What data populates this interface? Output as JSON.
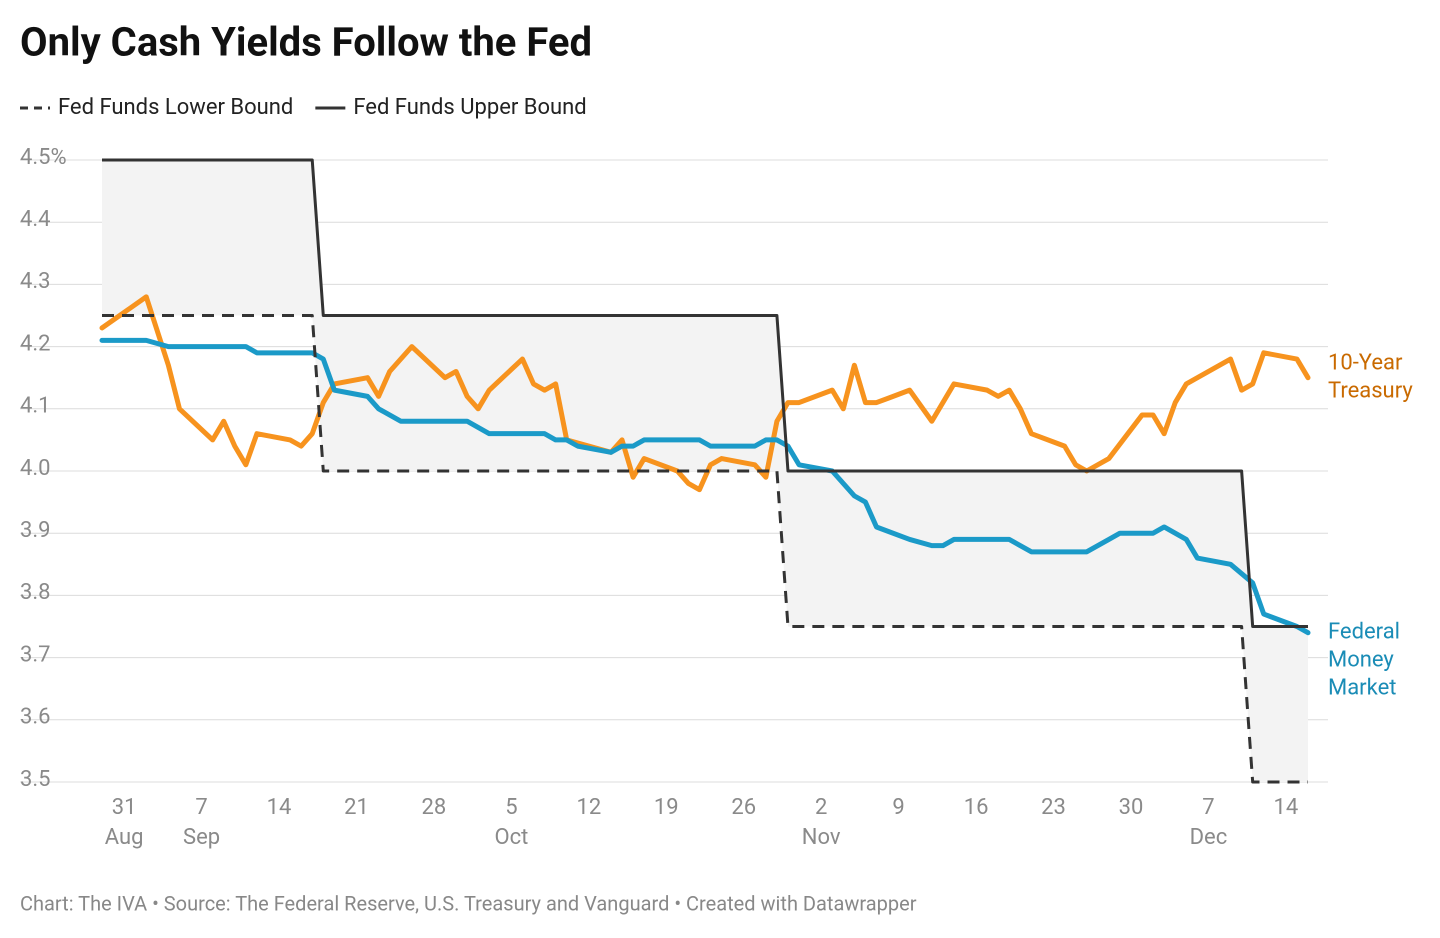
{
  "chart_data": {
    "type": "line",
    "title": "Only Cash Yields Follow the Fed",
    "footer": "Chart: The IVA • Source: The Federal Reserve, U.S. Treasury and Vanguard • Created with Datawrapper",
    "xlim": [
      "Aug 29",
      "Dec 16"
    ],
    "xticks": [
      {
        "value": "Aug 31",
        "label": "31"
      },
      {
        "value": "Sep 7",
        "label": "7"
      },
      {
        "value": "Sep 14",
        "label": "14"
      },
      {
        "value": "Sep 21",
        "label": "21"
      },
      {
        "value": "Sep 28",
        "label": "28"
      },
      {
        "value": "Oct 5",
        "label": "5"
      },
      {
        "value": "Oct 12",
        "label": "12"
      },
      {
        "value": "Oct 19",
        "label": "19"
      },
      {
        "value": "Oct 26",
        "label": "26"
      },
      {
        "value": "Nov 2",
        "label": "2"
      },
      {
        "value": "Nov 9",
        "label": "9"
      },
      {
        "value": "Nov 16",
        "label": "16"
      },
      {
        "value": "Nov 23",
        "label": "23"
      },
      {
        "value": "Nov 30",
        "label": "30"
      },
      {
        "value": "Dec 7",
        "label": "7"
      },
      {
        "value": "Dec 14",
        "label": "14"
      }
    ],
    "xmonths": [
      {
        "value": "Aug 31",
        "label": "Aug"
      },
      {
        "value": "Sep 7",
        "label": "Sep"
      },
      {
        "value": "Oct 5",
        "label": "Oct"
      },
      {
        "value": "Nov 2",
        "label": "Nov"
      },
      {
        "value": "Dec 7",
        "label": "Dec"
      }
    ],
    "ylim": [
      3.5,
      4.5
    ],
    "yticks": [
      {
        "value": 4.5,
        "label": "4.5%"
      },
      4.4,
      4.3,
      4.2,
      4.1,
      {
        "value": 4.0,
        "label": "4.0"
      },
      3.9,
      3.8,
      3.7,
      3.6,
      3.5
    ],
    "grid": true,
    "band_color": "#f3f3f3",
    "series": [
      {
        "name": "Fed Funds Lower Bound",
        "color": "#333333",
        "style": "dashed",
        "legend": true,
        "x": [
          "Aug 29",
          "Sep 17",
          "Sep 18",
          "Oct 29",
          "Oct 30",
          "Dec 10",
          "Dec 11",
          "Dec 16"
        ],
        "values": [
          4.25,
          4.25,
          4.0,
          4.0,
          3.75,
          3.75,
          3.5,
          3.5
        ]
      },
      {
        "name": "Fed Funds Upper Bound",
        "color": "#333333",
        "style": "solid",
        "legend": true,
        "x": [
          "Aug 29",
          "Sep 17",
          "Sep 18",
          "Oct 29",
          "Oct 30",
          "Dec 10",
          "Dec 11",
          "Dec 16"
        ],
        "values": [
          4.5,
          4.5,
          4.25,
          4.25,
          4.0,
          4.0,
          3.75,
          3.75
        ]
      },
      {
        "label_lines": [
          "10-Year",
          "Treasury"
        ],
        "color": "#f7931e",
        "label_color": "#c96a00",
        "style": "solid",
        "legend": false,
        "x": [
          "Aug 29",
          "Sep 2",
          "Sep 4",
          "Sep 5",
          "Sep 8",
          "Sep 9",
          "Sep 10",
          "Sep 11",
          "Sep 12",
          "Sep 15",
          "Sep 16",
          "Sep 17",
          "Sep 18",
          "Sep 19",
          "Sep 22",
          "Sep 23",
          "Sep 24",
          "Sep 26",
          "Sep 29",
          "Sep 30",
          "Oct 1",
          "Oct 2",
          "Oct 3",
          "Oct 6",
          "Oct 7",
          "Oct 8",
          "Oct 9",
          "Oct 10",
          "Oct 14",
          "Oct 15",
          "Oct 16",
          "Oct 17",
          "Oct 20",
          "Oct 21",
          "Oct 22",
          "Oct 23",
          "Oct 24",
          "Oct 27",
          "Oct 28",
          "Oct 29",
          "Oct 30",
          "Oct 31",
          "Nov 3",
          "Nov 4",
          "Nov 5",
          "Nov 6",
          "Nov 7",
          "Nov 10",
          "Nov 12",
          "Nov 14",
          "Nov 17",
          "Nov 18",
          "Nov 19",
          "Nov 20",
          "Nov 21",
          "Nov 24",
          "Nov 25",
          "Nov 26",
          "Nov 28",
          "Dec 1",
          "Dec 2",
          "Dec 3",
          "Dec 4",
          "Dec 5",
          "Dec 9",
          "Dec 10",
          "Dec 11",
          "Dec 12",
          "Dec 15",
          "Dec 16"
        ],
        "values": [
          4.23,
          4.28,
          4.17,
          4.1,
          4.05,
          4.08,
          4.04,
          4.01,
          4.06,
          4.05,
          4.04,
          4.06,
          4.11,
          4.14,
          4.15,
          4.12,
          4.16,
          4.2,
          4.15,
          4.16,
          4.12,
          4.1,
          4.13,
          4.18,
          4.14,
          4.13,
          4.14,
          4.05,
          4.03,
          4.05,
          3.99,
          4.02,
          4.0,
          3.98,
          3.97,
          4.01,
          4.02,
          4.01,
          3.99,
          4.08,
          4.11,
          4.11,
          4.13,
          4.1,
          4.17,
          4.11,
          4.11,
          4.13,
          4.08,
          4.14,
          4.13,
          4.12,
          4.13,
          4.1,
          4.06,
          4.04,
          4.01,
          4.0,
          4.02,
          4.09,
          4.09,
          4.06,
          4.11,
          4.14,
          4.18,
          4.13,
          4.14,
          4.19,
          4.18,
          4.15
        ]
      },
      {
        "label_lines": [
          "Federal",
          "Money",
          "Market"
        ],
        "color": "#1b9ac8",
        "label_color": "#1a8cb6",
        "style": "solid",
        "legend": false,
        "x": [
          "Aug 29",
          "Sep 2",
          "Sep 4",
          "Sep 11",
          "Sep 12",
          "Sep 17",
          "Sep 18",
          "Sep 19",
          "Sep 22",
          "Sep 23",
          "Sep 25",
          "Sep 30",
          "Oct 1",
          "Oct 3",
          "Oct 8",
          "Oct 9",
          "Oct 10",
          "Oct 11",
          "Oct 14",
          "Oct 15",
          "Oct 16",
          "Oct 17",
          "Oct 22",
          "Oct 23",
          "Oct 27",
          "Oct 28",
          "Oct 29",
          "Oct 30",
          "Oct 31",
          "Nov 3",
          "Nov 5",
          "Nov 6",
          "Nov 7",
          "Nov 10",
          "Nov 12",
          "Nov 13",
          "Nov 14",
          "Nov 19",
          "Nov 21",
          "Nov 26",
          "Nov 28",
          "Nov 29",
          "Dec 2",
          "Dec 3",
          "Dec 5",
          "Dec 6",
          "Dec 9",
          "Dec 11",
          "Dec 12",
          "Dec 15",
          "Dec 16"
        ],
        "values": [
          4.21,
          4.21,
          4.2,
          4.2,
          4.19,
          4.19,
          4.18,
          4.13,
          4.12,
          4.1,
          4.08,
          4.08,
          4.08,
          4.06,
          4.06,
          4.05,
          4.05,
          4.04,
          4.03,
          4.04,
          4.04,
          4.05,
          4.05,
          4.04,
          4.04,
          4.05,
          4.05,
          4.04,
          4.01,
          4.0,
          3.96,
          3.95,
          3.91,
          3.89,
          3.88,
          3.88,
          3.89,
          3.89,
          3.87,
          3.87,
          3.89,
          3.9,
          3.9,
          3.91,
          3.89,
          3.86,
          3.85,
          3.82,
          3.77,
          3.75,
          3.74
        ]
      }
    ]
  }
}
